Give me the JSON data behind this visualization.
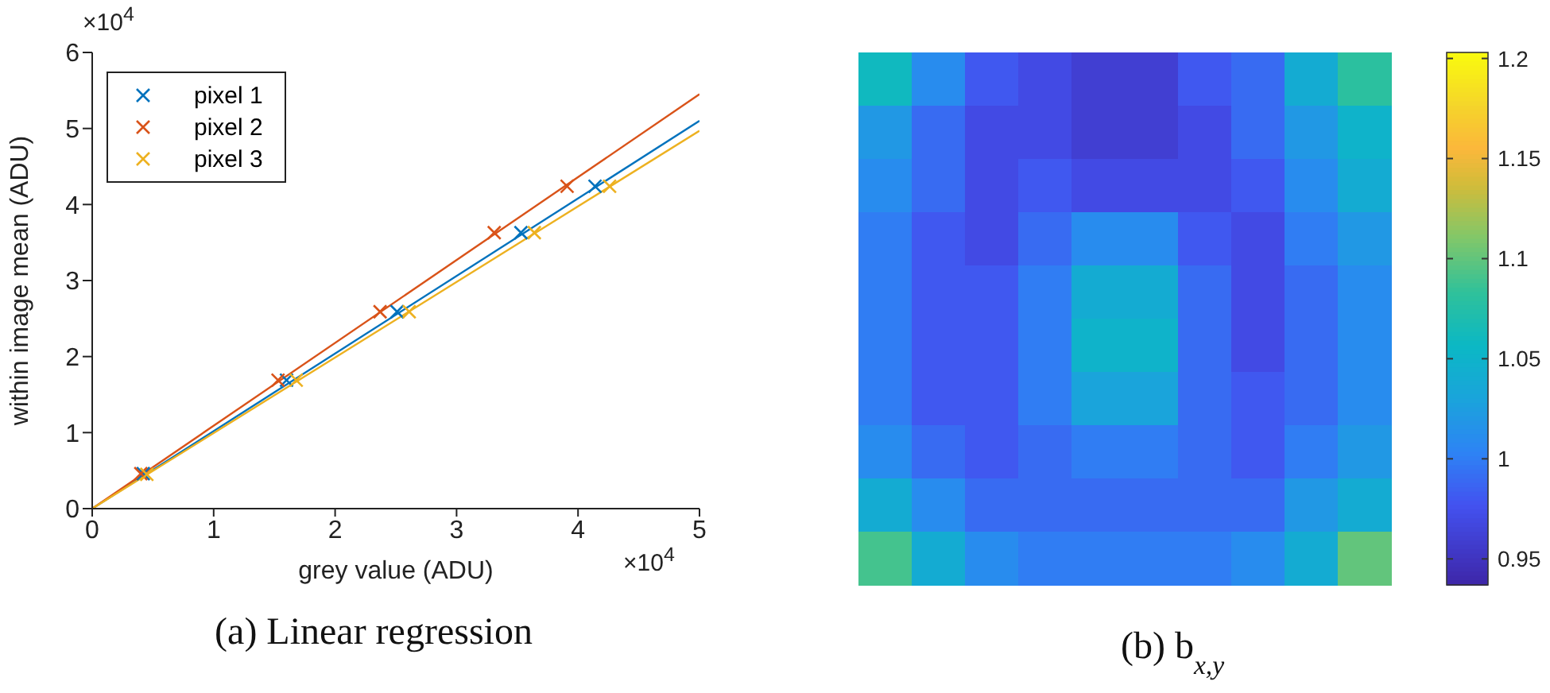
{
  "chart_data": [
    {
      "type": "scatter",
      "title": "(a) Linear regression",
      "xlabel": "grey value (ADU)",
      "ylabel": "within image mean (ADU)",
      "annotations": [
        "×10$^{4}$",
        "×10$^{4}$"
      ],
      "xlim": [
        0,
        5
      ],
      "ylim": [
        0,
        6
      ],
      "xticks": [
        0,
        1,
        2,
        3,
        4,
        5
      ],
      "yticks": [
        0,
        1,
        2,
        3,
        4,
        5,
        6
      ],
      "marker": "cross",
      "legend": "top left",
      "series": [
        {
          "name": "pixel 1",
          "color": "#0072bd",
          "x": [
            0.42,
            1.6,
            2.51,
            3.53,
            4.14
          ],
          "values": [
            0.46,
            1.69,
            2.59,
            3.63,
            4.24
          ]
        },
        {
          "name": "pixel 2",
          "color": "#d95319",
          "x": [
            0.4,
            1.53,
            2.37,
            3.31,
            3.91
          ],
          "values": [
            0.46,
            1.69,
            2.59,
            3.63,
            4.24
          ]
        },
        {
          "name": "pixel 3",
          "color": "#edb120",
          "x": [
            0.45,
            1.68,
            2.61,
            3.64,
            4.26
          ],
          "values": [
            0.45,
            1.69,
            2.59,
            3.63,
            4.24
          ]
        },
        {
          "type": "line",
          "marker": "none",
          "color": "#0072bd",
          "x": [
            0,
            5
          ],
          "values": [
            0,
            5.1
          ]
        },
        {
          "type": "line",
          "marker": "none",
          "color": "#d95319",
          "x": [
            0,
            5
          ],
          "values": [
            0,
            5.45
          ]
        },
        {
          "type": "line",
          "marker": "none",
          "color": "#edb120",
          "x": [
            0,
            5
          ],
          "values": [
            0,
            4.97
          ]
        }
      ]
    },
    {
      "type": "heatmap",
      "title": "(b) b$_{x,y}$",
      "categories": [
        null,
        null,
        null,
        null,
        null,
        null,
        null,
        null,
        null,
        null
      ],
      "y_categories": [
        null,
        null,
        null,
        null,
        null,
        null,
        null,
        null,
        null,
        null
      ],
      "clim": [
        0.937,
        1.203
      ],
      "cticks": [
        0.95,
        1,
        1.05,
        1.1,
        1.15,
        1.2
      ],
      "cells": [
        [
          1.06,
          1.01,
          0.98,
          0.97,
          0.96,
          0.96,
          0.98,
          0.99,
          1.04,
          1.08
        ],
        [
          1.02,
          0.99,
          0.97,
          0.97,
          0.96,
          0.96,
          0.97,
          0.99,
          1.02,
          1.05
        ],
        [
          1.01,
          0.99,
          0.97,
          0.98,
          0.97,
          0.97,
          0.97,
          0.98,
          1.01,
          1.04
        ],
        [
          1.0,
          0.98,
          0.97,
          0.99,
          1.01,
          1.01,
          0.98,
          0.97,
          1.0,
          1.02
        ],
        [
          1.0,
          0.98,
          0.98,
          1.0,
          1.04,
          1.04,
          0.99,
          0.97,
          0.99,
          1.01
        ],
        [
          1.0,
          0.98,
          0.98,
          1.0,
          1.05,
          1.05,
          0.99,
          0.97,
          0.99,
          1.01
        ],
        [
          1.0,
          0.98,
          0.98,
          1.0,
          1.03,
          1.03,
          0.99,
          0.98,
          0.99,
          1.01
        ],
        [
          1.01,
          0.99,
          0.98,
          0.99,
          1.0,
          1.0,
          0.99,
          0.98,
          1.0,
          1.02
        ],
        [
          1.04,
          1.01,
          0.99,
          0.99,
          0.99,
          0.99,
          0.99,
          0.99,
          1.02,
          1.04
        ],
        [
          1.09,
          1.04,
          1.01,
          1.0,
          1.0,
          1.0,
          1.0,
          1.01,
          1.04,
          1.1
        ]
      ]
    }
  ]
}
